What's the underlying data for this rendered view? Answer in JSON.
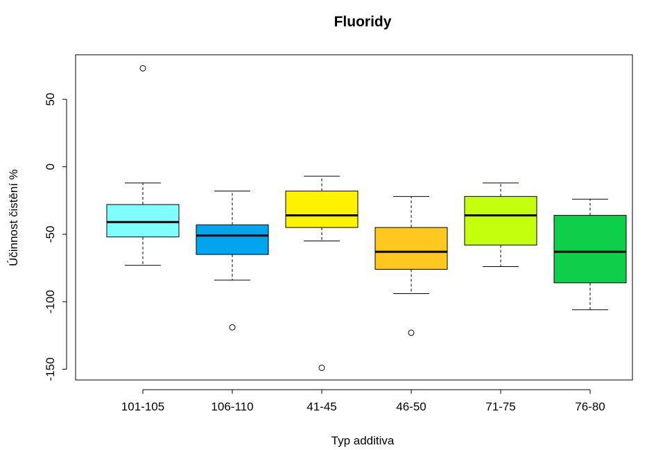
{
  "chart_data": {
    "type": "boxplot",
    "title": "Fluoridy",
    "xlabel": "Typ additiva",
    "ylabel": "Účinnost čistění %",
    "ylim": [
      -158,
      83
    ],
    "yticks": [
      50,
      0,
      -50,
      -100,
      -150
    ],
    "grid": false,
    "legend": "none",
    "categories": [
      "101-105",
      "106-110",
      "41-45",
      "46-50",
      "71-75",
      "76-80"
    ],
    "boxes": [
      {
        "category": "101-105",
        "color": "#80FFFF",
        "whisker_low": -73,
        "q1": -52,
        "median": -41,
        "q3": -28,
        "whisker_high": -12,
        "outliers": [
          73
        ]
      },
      {
        "category": "106-110",
        "color": "#00A5EE",
        "whisker_low": -84,
        "q1": -65,
        "median": -51,
        "q3": -43,
        "whisker_high": -18,
        "outliers": [
          -119
        ]
      },
      {
        "category": "41-45",
        "color": "#FFF200",
        "whisker_low": -55,
        "q1": -45,
        "median": -36,
        "q3": -18,
        "whisker_high": -7,
        "outliers": [
          -149
        ]
      },
      {
        "category": "46-50",
        "color": "#FFC81E",
        "whisker_low": -94,
        "q1": -76,
        "median": -63,
        "q3": -45,
        "whisker_high": -22,
        "outliers": [
          -123
        ]
      },
      {
        "category": "71-75",
        "color": "#C4FF0E",
        "whisker_low": -74,
        "q1": -58,
        "median": -36,
        "q3": -22,
        "whisker_high": -12,
        "outliers": []
      },
      {
        "category": "76-80",
        "color": "#0DCF49",
        "whisker_low": -106,
        "q1": -86,
        "median": -63,
        "q3": -36,
        "whisker_high": -24,
        "outliers": []
      }
    ]
  }
}
